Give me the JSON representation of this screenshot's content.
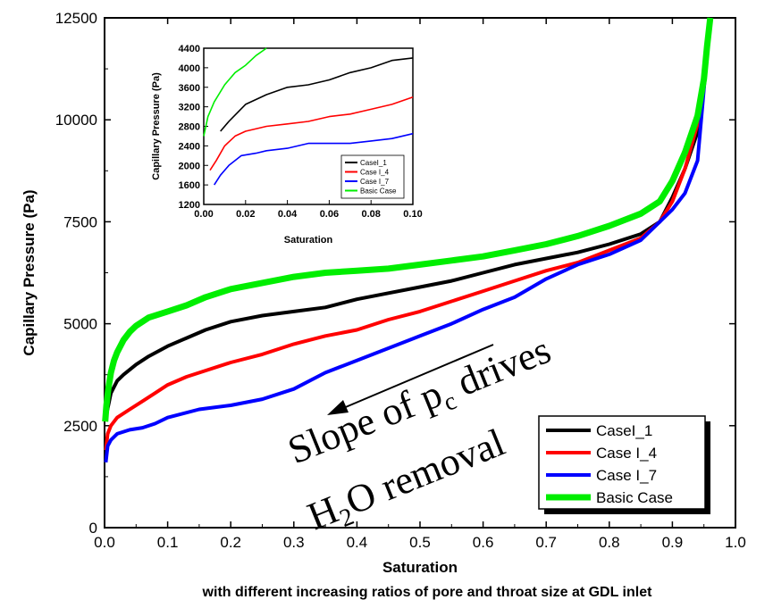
{
  "chart_data": {
    "type": "line",
    "xlabel": "Saturation",
    "ylabel": "Capillary Pressure (Pa)",
    "caption": "with different increasing ratios of pore and throat size at GDL inlet",
    "xlim": [
      0.0,
      1.0
    ],
    "ylim": [
      0,
      12500
    ],
    "x_ticks": [
      "0.0",
      "0.1",
      "0.2",
      "0.3",
      "0.4",
      "0.5",
      "0.6",
      "0.7",
      "0.8",
      "0.9",
      "1.0"
    ],
    "y_ticks": [
      "0",
      "2500",
      "5000",
      "7500",
      "10000",
      "12500"
    ],
    "legend_position": "lower-right",
    "annotation": {
      "line1_pre": "Slope of p",
      "line1_sub": "c",
      "line1_post": " drives",
      "line2_pre": "H",
      "line2_sub": "2",
      "line2_post": "O removal"
    },
    "series": [
      {
        "name": "CaseI_1",
        "color": "#000000",
        "x": [
          0.002,
          0.01,
          0.02,
          0.03,
          0.05,
          0.07,
          0.1,
          0.13,
          0.16,
          0.2,
          0.25,
          0.3,
          0.35,
          0.4,
          0.45,
          0.5,
          0.55,
          0.6,
          0.65,
          0.7,
          0.75,
          0.8,
          0.85,
          0.88,
          0.9,
          0.92,
          0.94,
          0.95,
          0.96
        ],
        "y": [
          2700,
          3300,
          3600,
          3750,
          4000,
          4200,
          4450,
          4650,
          4850,
          5050,
          5200,
          5300,
          5400,
          5600,
          5750,
          5900,
          6050,
          6250,
          6450,
          6600,
          6750,
          6950,
          7200,
          7500,
          8100,
          8800,
          9700,
          10800,
          12500
        ]
      },
      {
        "name": "Case I_4",
        "color": "#ff0000",
        "x": [
          0.002,
          0.005,
          0.01,
          0.02,
          0.04,
          0.06,
          0.08,
          0.1,
          0.13,
          0.16,
          0.2,
          0.25,
          0.3,
          0.35,
          0.4,
          0.45,
          0.5,
          0.55,
          0.6,
          0.65,
          0.7,
          0.75,
          0.8,
          0.85,
          0.88,
          0.9,
          0.92,
          0.94,
          0.96
        ],
        "y": [
          1900,
          2300,
          2500,
          2700,
          2900,
          3100,
          3300,
          3500,
          3700,
          3850,
          4050,
          4250,
          4500,
          4700,
          4850,
          5100,
          5300,
          5550,
          5800,
          6050,
          6300,
          6500,
          6800,
          7100,
          7500,
          8000,
          8800,
          9900,
          12500
        ]
      },
      {
        "name": "Case I_7",
        "color": "#0000ff",
        "x": [
          0.002,
          0.005,
          0.01,
          0.02,
          0.04,
          0.06,
          0.08,
          0.1,
          0.15,
          0.2,
          0.25,
          0.3,
          0.35,
          0.4,
          0.45,
          0.5,
          0.55,
          0.6,
          0.65,
          0.7,
          0.75,
          0.8,
          0.85,
          0.88,
          0.9,
          0.92,
          0.94,
          0.96
        ],
        "y": [
          1600,
          2000,
          2150,
          2300,
          2400,
          2450,
          2550,
          2700,
          2900,
          3000,
          3150,
          3400,
          3800,
          4100,
          4400,
          4700,
          5000,
          5350,
          5650,
          6100,
          6450,
          6700,
          7050,
          7500,
          7800,
          8200,
          9000,
          12500
        ]
      },
      {
        "name": "Basic Case",
        "color": "#00ee00",
        "x": [
          0.001,
          0.003,
          0.006,
          0.01,
          0.015,
          0.02,
          0.03,
          0.04,
          0.05,
          0.07,
          0.1,
          0.13,
          0.16,
          0.2,
          0.25,
          0.3,
          0.35,
          0.4,
          0.45,
          0.5,
          0.55,
          0.6,
          0.65,
          0.7,
          0.75,
          0.8,
          0.85,
          0.88,
          0.9,
          0.92,
          0.94,
          0.95,
          0.955,
          0.96
        ],
        "y": [
          2600,
          3000,
          3400,
          3800,
          4100,
          4300,
          4600,
          4800,
          4950,
          5150,
          5300,
          5450,
          5650,
          5850,
          6000,
          6150,
          6250,
          6300,
          6350,
          6450,
          6550,
          6650,
          6800,
          6950,
          7150,
          7400,
          7700,
          8000,
          8500,
          9200,
          10100,
          11000,
          11800,
          12500
        ]
      }
    ],
    "inset": {
      "xlabel": "Saturation",
      "ylabel": "Capillary Pressure (Pa)",
      "xlim": [
        0.0,
        0.1
      ],
      "ylim": [
        1200,
        4400
      ],
      "x_ticks": [
        "0.00",
        "0.02",
        "0.04",
        "0.06",
        "0.08",
        "0.10"
      ],
      "y_ticks": [
        "1200",
        "1600",
        "2000",
        "2400",
        "2800",
        "3200",
        "3600",
        "4000",
        "4400"
      ],
      "legend_position": "lower-right",
      "series": [
        {
          "name": "CaseI_1",
          "color": "#000000",
          "x": [
            0.008,
            0.012,
            0.02,
            0.03,
            0.04,
            0.05,
            0.06,
            0.07,
            0.08,
            0.09,
            0.1
          ],
          "y": [
            2700,
            2900,
            3250,
            3450,
            3600,
            3650,
            3750,
            3900,
            4000,
            4150,
            4200
          ]
        },
        {
          "name": "Case I_4",
          "color": "#ff0000",
          "x": [
            0.003,
            0.006,
            0.01,
            0.015,
            0.02,
            0.03,
            0.04,
            0.05,
            0.06,
            0.07,
            0.08,
            0.09,
            0.1
          ],
          "y": [
            1900,
            2100,
            2400,
            2600,
            2700,
            2800,
            2850,
            2900,
            3000,
            3050,
            3150,
            3250,
            3400
          ]
        },
        {
          "name": "Case I_7",
          "color": "#0000ff",
          "x": [
            0.005,
            0.008,
            0.012,
            0.018,
            0.025,
            0.03,
            0.04,
            0.05,
            0.06,
            0.07,
            0.08,
            0.09,
            0.1
          ],
          "y": [
            1600,
            1800,
            2000,
            2200,
            2250,
            2300,
            2350,
            2450,
            2450,
            2450,
            2500,
            2550,
            2650
          ]
        },
        {
          "name": "Basic Case",
          "color": "#00ee00",
          "x": [
            0.0,
            0.002,
            0.005,
            0.01,
            0.015,
            0.02,
            0.025,
            0.03
          ],
          "y": [
            2600,
            3000,
            3300,
            3650,
            3900,
            4050,
            4250,
            4400
          ]
        }
      ]
    }
  }
}
